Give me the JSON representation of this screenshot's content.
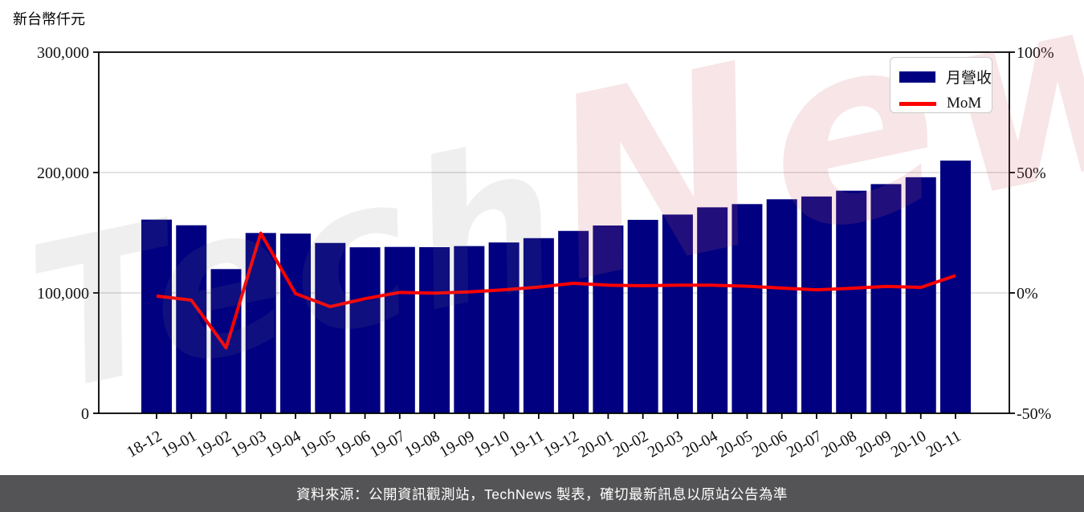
{
  "page": {
    "unit_label": "新台幣仟元",
    "footer": "資料來源：公開資訊觀測站，TechNews 製表，確切最新訊息以原站公告為準",
    "watermark": {
      "tech": "Tech",
      "news": "News"
    }
  },
  "legend": {
    "bar_label": "月營收",
    "line_label": "MoM"
  },
  "colors": {
    "bar": "#000080",
    "line": "#ff0000",
    "grid": "#d8d8d8",
    "axis": "#000000",
    "footer_bg": "#545456",
    "watermark_pink": "rgba(206,91,108,0.16)",
    "watermark_gray": "rgba(122,122,122,0.12)"
  },
  "chart_data": {
    "type": "bar+line",
    "title": "",
    "ylabel_left": "新台幣仟元",
    "ylabel_right": "%",
    "grid": "horizontal-light",
    "legend_position": "top-right",
    "categories": [
      "18-12",
      "19-01",
      "19-02",
      "19-03",
      "19-04",
      "19-05",
      "19-06",
      "19-07",
      "19-08",
      "19-09",
      "19-10",
      "19-11",
      "19-12",
      "20-01",
      "20-02",
      "20-03",
      "20-04",
      "20-05",
      "20-06",
      "20-07",
      "20-08",
      "20-09",
      "20-10",
      "20-11"
    ],
    "series": [
      {
        "name": "月營收",
        "type": "bar",
        "axis": "left",
        "values": [
          160900,
          156200,
          119800,
          149800,
          149300,
          141500,
          137900,
          138200,
          138000,
          138900,
          141900,
          145500,
          151500,
          156000,
          160700,
          165100,
          171100,
          173800,
          177800,
          180100,
          184900,
          190400,
          196100,
          209900
        ]
      },
      {
        "name": "MoM",
        "type": "line",
        "axis": "right",
        "unit": "%",
        "values": [
          -1.3,
          -3.0,
          -22.8,
          24.8,
          -0.3,
          -5.7,
          -2.4,
          0.2,
          -0.1,
          0.4,
          1.3,
          2.4,
          4.0,
          3.2,
          3.0,
          3.2,
          3.2,
          2.8,
          2.0,
          1.3,
          1.9,
          2.7,
          2.3,
          7.2
        ]
      }
    ],
    "left_axis": {
      "range": [
        0,
        300000
      ],
      "ticks": [
        0,
        100000,
        200000,
        300000
      ],
      "tick_labels": [
        "0",
        "100,000",
        "200,000",
        "300,000"
      ]
    },
    "right_axis": {
      "range": [
        -50,
        100
      ],
      "ticks": [
        -50,
        0,
        50,
        100
      ],
      "tick_labels": [
        "-50%",
        "0%",
        "50%",
        "100%"
      ]
    }
  }
}
